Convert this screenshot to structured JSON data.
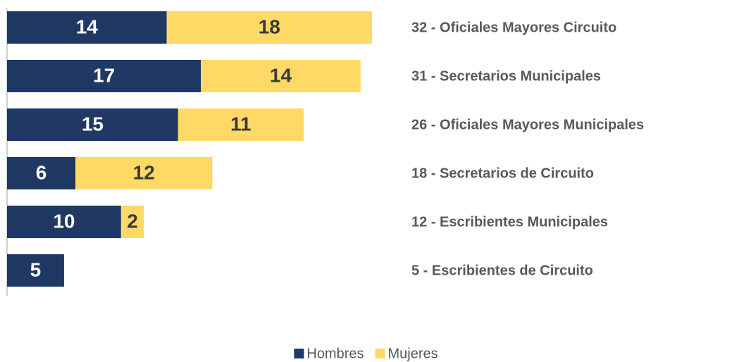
{
  "chart_data": {
    "type": "stacked_bar_horizontal",
    "categories": [
      "32 - Oficiales Mayores Circuito",
      "31 - Secretarios Municipales",
      "26 - Oficiales Mayores Municipales",
      "18 - Secretarios de Circuito",
      "12 - Escribientes Municipales",
      "5 - Escribientes de Circuito"
    ],
    "series": [
      {
        "name": "Hombres",
        "color": "#1f3864",
        "values": [
          14,
          17,
          15,
          6,
          10,
          5
        ]
      },
      {
        "name": "Mujeres",
        "color": "#ffd966",
        "values": [
          18,
          14,
          11,
          12,
          2,
          null
        ]
      }
    ],
    "legend": "bottom"
  }
}
